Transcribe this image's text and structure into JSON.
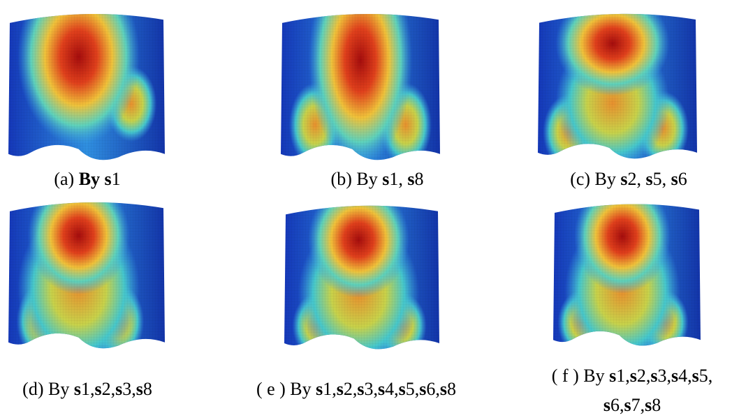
{
  "panels": [
    {
      "caption": "(a) By s1",
      "bold_by": true
    },
    {
      "caption": "(b) By s1, s8"
    },
    {
      "caption": "(c) By s2, s5, s6"
    },
    {
      "caption": "(d) By s1,s2,s3,s8"
    },
    {
      "caption": "( e ) By s1,s2,s3,s4,s5,s6,s8"
    },
    {
      "caption": "( f ) By s1,s2,s3,s4,s5, s6,s7,s8"
    }
  ]
}
